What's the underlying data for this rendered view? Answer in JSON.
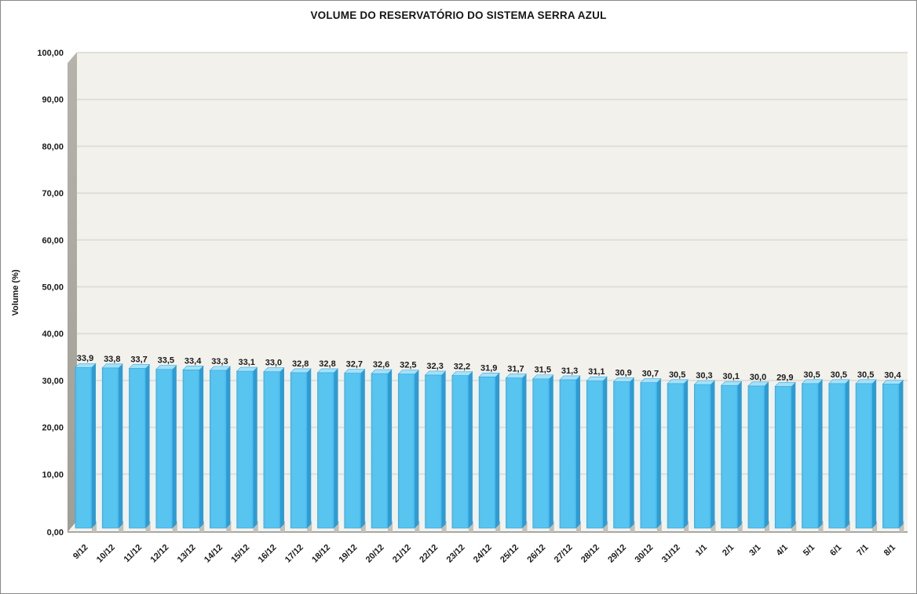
{
  "chart_data": {
    "type": "bar",
    "style": "excel-3d-column",
    "title": "VOLUME DO RESERVATÓRIO DO SISTEMA SERRA AZUL",
    "xlabel": "",
    "ylabel": "Volume (%)",
    "categories": [
      "9/12",
      "10/12",
      "11/12",
      "12/12",
      "13/12",
      "14/12",
      "15/12",
      "16/12",
      "17/12",
      "18/12",
      "19/12",
      "20/12",
      "21/12",
      "22/12",
      "23/12",
      "24/12",
      "25/12",
      "26/12",
      "27/12",
      "28/12",
      "29/12",
      "30/12",
      "31/12",
      "1/1",
      "2/1",
      "3/1",
      "4/1",
      "5/1",
      "6/1",
      "7/1",
      "8/1"
    ],
    "values": [
      33.9,
      33.8,
      33.7,
      33.5,
      33.4,
      33.3,
      33.1,
      33.0,
      32.8,
      32.8,
      32.7,
      32.6,
      32.5,
      32.3,
      32.2,
      31.9,
      31.7,
      31.5,
      31.3,
      31.1,
      30.9,
      30.7,
      30.5,
      30.3,
      30.1,
      30.0,
      29.9,
      30.5,
      30.5,
      30.5,
      30.4
    ],
    "value_labels": [
      "33,9",
      "33,8",
      "33,7",
      "33,5",
      "33,4",
      "33,3",
      "33,1",
      "33,0",
      "32,8",
      "32,8",
      "32,7",
      "32,6",
      "32,5",
      "32,3",
      "32,2",
      "31,9",
      "31,7",
      "31,5",
      "31,3",
      "31,1",
      "30,9",
      "30,7",
      "30,5",
      "30,3",
      "30,1",
      "30,0",
      "29,9",
      "30,5",
      "30,5",
      "30,5",
      "30,4"
    ],
    "ylim": [
      0,
      100
    ],
    "ytick_step": 10,
    "ytick_labels": [
      "0,00",
      "10,00",
      "20,00",
      "30,00",
      "40,00",
      "50,00",
      "60,00",
      "70,00",
      "80,00",
      "90,00",
      "100,00"
    ],
    "grid": true,
    "legend": false,
    "colors": {
      "bar_front": "#58C5F1",
      "bar_top": "#A5E1FA",
      "bar_side": "#2D9CD4",
      "bar_edge": "#3AA9DC",
      "plot_bg": "#F2F1EC",
      "gridline": "#DFDED9",
      "wall_light": "#B5B3AA",
      "wall_dark": "#A09E95",
      "floor": "#F4F3EF",
      "floor_edge": "#8E8C84",
      "bar_floor_shadow": "#C2C0B8",
      "text": "#1A1A1A"
    }
  }
}
